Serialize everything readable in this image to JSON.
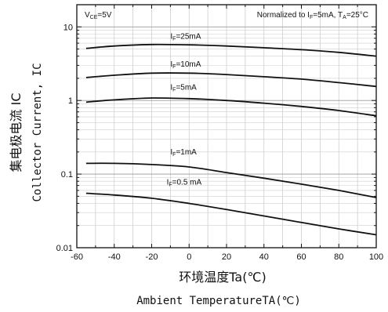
{
  "chart_data": {
    "type": "line",
    "title": "",
    "xlabel_zh": "环境温度Ta(℃)",
    "xlabel_en": "Ambient TemperatureTA(℃)",
    "ylabel_zh": "集电极电流 IC",
    "ylabel_en": "Collector Current, IC",
    "xlim": [
      -60,
      100
    ],
    "ylim": [
      0.01,
      20
    ],
    "yscale": "log",
    "grid": true,
    "x_ticks": [
      -60,
      -40,
      -20,
      0,
      20,
      40,
      60,
      80,
      100
    ],
    "x_tick_labels": [
      "-60",
      "-40",
      "-20",
      "0",
      "20",
      "40",
      "60",
      "80",
      "100"
    ],
    "y_ticks": [
      0.01,
      0.1,
      1,
      10
    ],
    "y_tick_labels": [
      "0.01",
      "0.1",
      "1",
      "10"
    ],
    "condition_left": {
      "main": "V",
      "sub": "CE",
      "rest": "=5V"
    },
    "condition_right": {
      "p1": "Normalized to I",
      "s1": "F",
      "p2": "=5mA, T",
      "s2": "A",
      "p3": "=25°C"
    },
    "series": [
      {
        "label_main": "I",
        "label_sub": "F",
        "label_rest": "=25mA",
        "label_at": [
          -10,
          6.9
        ],
        "x": [
          -55,
          -40,
          -20,
          0,
          20,
          40,
          60,
          80,
          100
        ],
        "y": [
          5.1,
          5.5,
          5.75,
          5.7,
          5.5,
          5.2,
          4.9,
          4.5,
          4.0
        ]
      },
      {
        "label_main": "I",
        "label_sub": "F",
        "label_rest": "=10mA",
        "label_at": [
          -10,
          2.9
        ],
        "x": [
          -55,
          -40,
          -20,
          0,
          20,
          40,
          60,
          80,
          100
        ],
        "y": [
          2.05,
          2.2,
          2.35,
          2.35,
          2.25,
          2.1,
          1.95,
          1.75,
          1.55
        ]
      },
      {
        "label_main": "I",
        "label_sub": "F",
        "label_rest": "=5mA",
        "label_at": [
          -10,
          1.4
        ],
        "x": [
          -55,
          -40,
          -20,
          0,
          20,
          40,
          60,
          80,
          100
        ],
        "y": [
          0.95,
          1.02,
          1.08,
          1.06,
          1.0,
          0.92,
          0.83,
          0.73,
          0.62
        ]
      },
      {
        "label_main": "I",
        "label_sub": "F",
        "label_rest": "=1mA",
        "label_at": [
          -10,
          0.185
        ],
        "x": [
          -55,
          -40,
          -20,
          0,
          20,
          40,
          60,
          80,
          100
        ],
        "y": [
          0.14,
          0.14,
          0.135,
          0.125,
          0.105,
          0.088,
          0.073,
          0.06,
          0.048
        ]
      },
      {
        "label_main": "I",
        "label_sub": "F",
        "label_rest": "=0.5 mA",
        "label_at": [
          -12,
          0.072
        ],
        "x": [
          -55,
          -40,
          -20,
          0,
          20,
          40,
          60,
          80,
          100
        ],
        "y": [
          0.055,
          0.052,
          0.047,
          0.04,
          0.033,
          0.027,
          0.022,
          0.018,
          0.015
        ]
      }
    ]
  }
}
